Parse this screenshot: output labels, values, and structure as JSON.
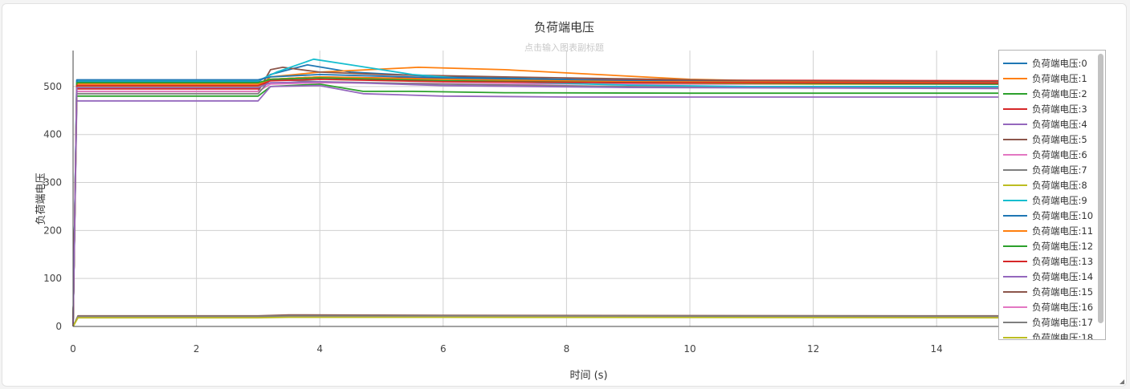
{
  "card": {
    "title": "负荷端电压",
    "subtitle_placeholder": "点击输入图表副标题"
  },
  "chart_data": {
    "type": "line",
    "title": "负荷端电压",
    "subtitle": "点击输入图表副标题",
    "xlabel": "时间 (s)",
    "ylabel": "负荷端电压",
    "xlim": [
      0,
      15
    ],
    "ylim": [
      0,
      575
    ],
    "x_ticks": [
      "0",
      "2",
      "4",
      "6",
      "8",
      "10",
      "12",
      "14"
    ],
    "y_ticks": [
      "0",
      "100",
      "200",
      "300",
      "400",
      "500"
    ],
    "grid": true,
    "legend_position": "right",
    "series": [
      {
        "name": "负荷端电压:0",
        "color": "#1f77b4",
        "points": [
          [
            0,
            0
          ],
          [
            0.06,
            510
          ],
          [
            3,
            510
          ],
          [
            3.2,
            525
          ],
          [
            3.8,
            545
          ],
          [
            4.5,
            530
          ],
          [
            6,
            520
          ],
          [
            8,
            515
          ],
          [
            10,
            512
          ],
          [
            12,
            510
          ],
          [
            15,
            510
          ]
        ]
      },
      {
        "name": "负荷端电压:1",
        "color": "#ff7f0e",
        "points": [
          [
            0,
            0
          ],
          [
            0.06,
            500
          ],
          [
            3,
            500
          ],
          [
            3.2,
            520
          ],
          [
            4,
            530
          ],
          [
            4.8,
            535
          ],
          [
            5.6,
            540
          ],
          [
            7,
            535
          ],
          [
            8.5,
            525
          ],
          [
            10,
            515
          ],
          [
            12,
            510
          ],
          [
            15,
            510
          ]
        ]
      },
      {
        "name": "负荷端电压:2",
        "color": "#2ca02c",
        "points": [
          [
            0,
            0
          ],
          [
            0.06,
            480
          ],
          [
            3,
            480
          ],
          [
            3.2,
            500
          ],
          [
            4,
            505
          ],
          [
            4.7,
            490
          ],
          [
            5.5,
            490
          ],
          [
            7,
            487
          ],
          [
            10,
            486
          ],
          [
            15,
            486
          ]
        ]
      },
      {
        "name": "负荷端电压:3",
        "color": "#d62728",
        "points": [
          [
            0,
            0
          ],
          [
            0.06,
            495
          ],
          [
            3,
            495
          ],
          [
            3.2,
            515
          ],
          [
            4,
            520
          ],
          [
            5,
            518
          ],
          [
            7,
            515
          ],
          [
            9,
            513
          ],
          [
            11,
            513
          ],
          [
            15,
            512
          ]
        ]
      },
      {
        "name": "负荷端电压:4",
        "color": "#9467bd",
        "points": [
          [
            0,
            0
          ],
          [
            0.06,
            470
          ],
          [
            3,
            470
          ],
          [
            3.2,
            500
          ],
          [
            4,
            502
          ],
          [
            4.7,
            485
          ],
          [
            6,
            480
          ],
          [
            8,
            478
          ],
          [
            10,
            478
          ],
          [
            15,
            478
          ]
        ]
      },
      {
        "name": "负荷端电压:5",
        "color": "#8c564b",
        "points": [
          [
            0,
            0
          ],
          [
            0.06,
            490
          ],
          [
            3,
            490
          ],
          [
            3.2,
            535
          ],
          [
            3.4,
            540
          ],
          [
            4,
            530
          ],
          [
            5,
            525
          ],
          [
            7,
            520
          ],
          [
            9,
            516
          ],
          [
            11,
            512
          ],
          [
            15,
            510
          ]
        ]
      },
      {
        "name": "负荷端电压:6",
        "color": "#e377c2",
        "points": [
          [
            0,
            0
          ],
          [
            0.06,
            490
          ],
          [
            3,
            490
          ],
          [
            3.2,
            505
          ],
          [
            4,
            508
          ],
          [
            6,
            506
          ],
          [
            9,
            505
          ],
          [
            15,
            505
          ]
        ]
      },
      {
        "name": "负荷端电压:7",
        "color": "#7f7f7f",
        "points": [
          [
            0,
            0
          ],
          [
            0.06,
            485
          ],
          [
            3,
            485
          ],
          [
            3.2,
            515
          ],
          [
            4,
            510
          ],
          [
            6,
            505
          ],
          [
            9,
            500
          ],
          [
            12,
            498
          ],
          [
            15,
            498
          ]
        ]
      },
      {
        "name": "负荷端电压:8",
        "color": "#bcbd22",
        "points": [
          [
            0,
            0
          ],
          [
            0.06,
            500
          ],
          [
            3,
            500
          ],
          [
            3.2,
            515
          ],
          [
            4,
            520
          ],
          [
            6,
            512
          ],
          [
            9,
            508
          ],
          [
            12,
            505
          ],
          [
            15,
            505
          ]
        ]
      },
      {
        "name": "负荷端电压:9",
        "color": "#17becf",
        "points": [
          [
            0,
            0
          ],
          [
            0.06,
            512
          ],
          [
            3,
            512
          ],
          [
            3.3,
            530
          ],
          [
            3.9,
            557
          ],
          [
            4.5,
            545
          ],
          [
            5.5,
            525
          ],
          [
            7,
            510
          ],
          [
            9,
            503
          ],
          [
            11,
            500
          ],
          [
            15,
            500
          ]
        ]
      },
      {
        "name": "负荷端电压:10",
        "color": "#1f77b4",
        "points": [
          [
            0,
            0
          ],
          [
            0.06,
            514
          ],
          [
            3,
            514
          ],
          [
            3.2,
            520
          ],
          [
            4,
            525
          ],
          [
            6,
            518
          ],
          [
            9,
            512
          ],
          [
            12,
            508
          ],
          [
            15,
            508
          ]
        ]
      },
      {
        "name": "负荷端电压:11",
        "color": "#ff7f0e",
        "points": [
          [
            0,
            0
          ],
          [
            0.06,
            505
          ],
          [
            3,
            505
          ],
          [
            3.2,
            515
          ],
          [
            4,
            520
          ],
          [
            6,
            515
          ],
          [
            9,
            510
          ],
          [
            15,
            508
          ]
        ]
      },
      {
        "name": "负荷端电压:12",
        "color": "#2ca02c",
        "points": [
          [
            0,
            0
          ],
          [
            0.06,
            508
          ],
          [
            3,
            508
          ],
          [
            3.2,
            515
          ],
          [
            4,
            518
          ],
          [
            6,
            512
          ],
          [
            9,
            508
          ],
          [
            15,
            505
          ]
        ]
      },
      {
        "name": "负荷端电压:13",
        "color": "#d62728",
        "points": [
          [
            0,
            0
          ],
          [
            0.06,
            502
          ],
          [
            3,
            502
          ],
          [
            3.2,
            512
          ],
          [
            4,
            515
          ],
          [
            6,
            510
          ],
          [
            9,
            508
          ],
          [
            15,
            507
          ]
        ]
      },
      {
        "name": "负荷端电压:14",
        "color": "#9467bd",
        "points": [
          [
            0,
            0
          ],
          [
            0.06,
            498
          ],
          [
            3,
            498
          ],
          [
            3.2,
            508
          ],
          [
            4,
            510
          ],
          [
            6,
            502
          ],
          [
            9,
            498
          ],
          [
            15,
            496
          ]
        ]
      },
      {
        "name": "负荷端电压:15",
        "color": "#8c564b",
        "points": [
          [
            0,
            0
          ],
          [
            0.08,
            22
          ],
          [
            3,
            22
          ],
          [
            3.5,
            24
          ],
          [
            6,
            23
          ],
          [
            15,
            22
          ]
        ]
      },
      {
        "name": "负荷端电压:16",
        "color": "#e377c2",
        "points": [
          [
            0,
            0
          ],
          [
            0.08,
            20
          ],
          [
            3,
            20
          ],
          [
            3.5,
            21
          ],
          [
            6,
            21
          ],
          [
            15,
            20
          ]
        ]
      },
      {
        "name": "负荷端电压:17",
        "color": "#7f7f7f",
        "points": [
          [
            0,
            0
          ],
          [
            0.08,
            21
          ],
          [
            3,
            21
          ],
          [
            3.5,
            22
          ],
          [
            6,
            22
          ],
          [
            15,
            21
          ]
        ]
      },
      {
        "name": "负荷端电压:18",
        "color": "#bcbd22",
        "points": [
          [
            0,
            0
          ],
          [
            0.08,
            18
          ],
          [
            3,
            18
          ],
          [
            3.5,
            19
          ],
          [
            6,
            19
          ],
          [
            15,
            18
          ]
        ]
      }
    ]
  }
}
